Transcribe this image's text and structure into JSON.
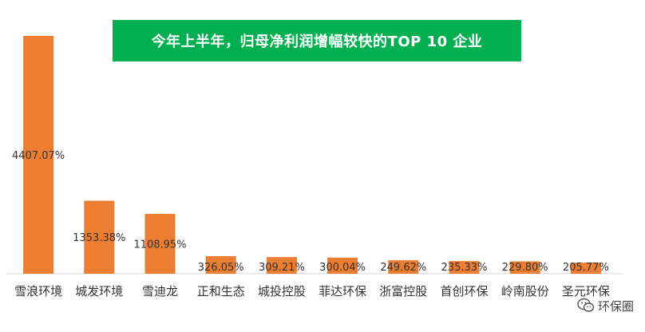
{
  "chart_data": {
    "type": "bar",
    "title": "今年上半年，归母净利润增幅较快的TOP 10 企业",
    "categories": [
      "雪浪环境",
      "城发环境",
      "雪迪龙",
      "正和生态",
      "城投控股",
      "菲达环保",
      "浙富控股",
      "首创环保",
      "岭南股份",
      "圣元环保"
    ],
    "values": [
      4407.07,
      1353.38,
      1108.95,
      326.05,
      309.21,
      300.04,
      249.62,
      235.33,
      229.8,
      205.77
    ],
    "value_labels": [
      "4407.07%",
      "1353.38%",
      "1108.95%",
      "326.05%",
      "309.21%",
      "300.04%",
      "249.62%",
      "235.33%",
      "229.80%",
      "205.77%"
    ],
    "ylim": [
      0,
      4407.07
    ],
    "bar_color": "#ed7d31",
    "title_bg": "#00b050",
    "grid": false,
    "legend": "none"
  },
  "watermark": {
    "text": "环保圈",
    "icon": "wechat-icon"
  }
}
